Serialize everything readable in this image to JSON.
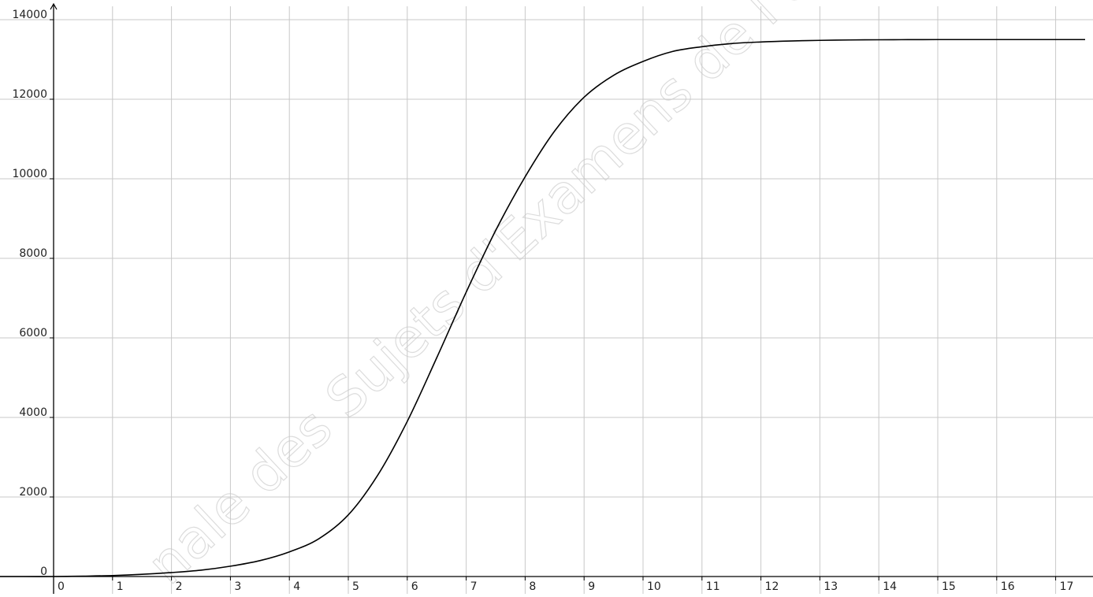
{
  "chart_data": {
    "type": "line",
    "title": "",
    "xlabel": "",
    "ylabel": "",
    "xlim": [
      -0.9,
      17.5
    ],
    "ylim": [
      -150,
      14250
    ],
    "grid": true,
    "x_ticks": [
      0,
      1,
      2,
      3,
      4,
      5,
      6,
      7,
      8,
      9,
      10,
      11,
      12,
      13,
      14,
      15,
      16,
      17
    ],
    "x_tick_labels": [
      "0",
      "1",
      "2",
      "3",
      "4",
      "5",
      "6",
      "7",
      "8",
      "9",
      "10",
      "11",
      "12",
      "13",
      "14",
      "15",
      "16",
      "17"
    ],
    "y_ticks": [
      0,
      2000,
      4000,
      6000,
      8000,
      10000,
      12000,
      14000
    ],
    "y_tick_labels": [
      "0",
      "2000",
      "4000",
      "6000",
      "8000",
      "10000",
      "12000",
      "14000"
    ],
    "series": [
      {
        "x": [
          -1,
          -0.5,
          0,
          0.5,
          1,
          1.5,
          2,
          2.5,
          3,
          3.5,
          4,
          4.5,
          5,
          5.5,
          6,
          6.5,
          7,
          7.5,
          8,
          8.5,
          9,
          9.5,
          10,
          10.5,
          11,
          11.5,
          12,
          12.5,
          13,
          13.5,
          14,
          14.5,
          15,
          15.5,
          16,
          16.5,
          17,
          17.5
        ],
        "values": [
          0,
          0,
          0,
          10,
          25,
          55,
          100,
          160,
          260,
          400,
          620,
          950,
          1550,
          2550,
          3900,
          5500,
          7150,
          8700,
          10050,
          11200,
          12050,
          12600,
          12950,
          13200,
          13320,
          13400,
          13440,
          13465,
          13480,
          13490,
          13495,
          13498,
          13500,
          13500,
          13500,
          13500,
          13500,
          13500
        ],
        "color": "#000000"
      }
    ],
    "watermark": "nale des Sujets d'Examens de l'enseig"
  }
}
